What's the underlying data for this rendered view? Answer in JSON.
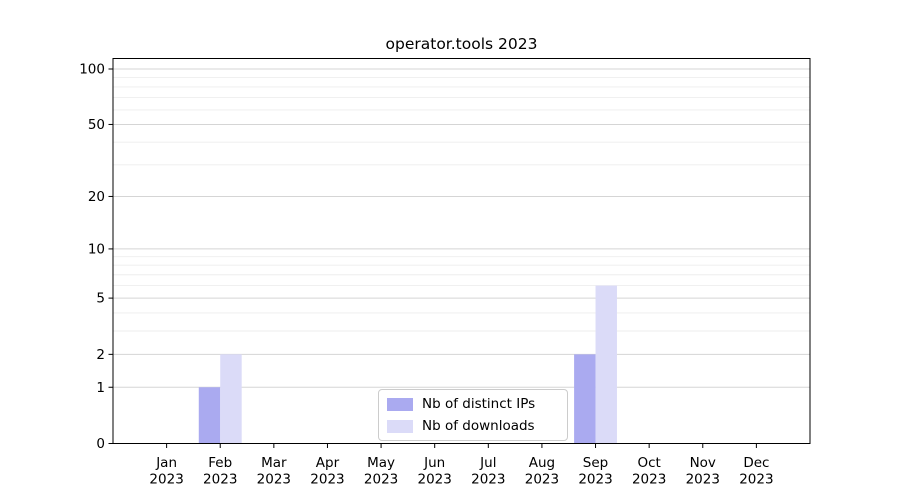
{
  "chart_data": {
    "type": "bar",
    "title": "operator.tools 2023",
    "categories": [
      "Jan",
      "Feb",
      "Mar",
      "Apr",
      "May",
      "Jun",
      "Jul",
      "Aug",
      "Sep",
      "Oct",
      "Nov",
      "Dec"
    ],
    "category_year": "2023",
    "series": [
      {
        "name": "Nb of distinct IPs",
        "color": "#aaaaf0",
        "values": [
          0,
          1,
          0,
          0,
          0,
          0,
          0,
          0,
          2,
          0,
          0,
          0
        ]
      },
      {
        "name": "Nb of downloads",
        "color": "#dbdbf8",
        "values": [
          0,
          2,
          0,
          0,
          0,
          0,
          0,
          0,
          6,
          0,
          0,
          0
        ]
      }
    ],
    "xlabel": "",
    "ylabel": "",
    "y_scale": "log1p",
    "y_major_ticks": [
      0,
      1,
      2,
      5,
      10,
      20,
      50,
      100
    ],
    "y_minor_gridlines": [
      3,
      4,
      6,
      7,
      8,
      9,
      30,
      40,
      60,
      70,
      80,
      90
    ],
    "ylim": [
      0,
      114
    ],
    "grid": "horizontal",
    "legend_position": "lower center",
    "colors": {
      "major_grid": "#d5d5d5",
      "minor_grid": "#eeeeee",
      "axis": "#000000",
      "background": "#ffffff"
    }
  }
}
